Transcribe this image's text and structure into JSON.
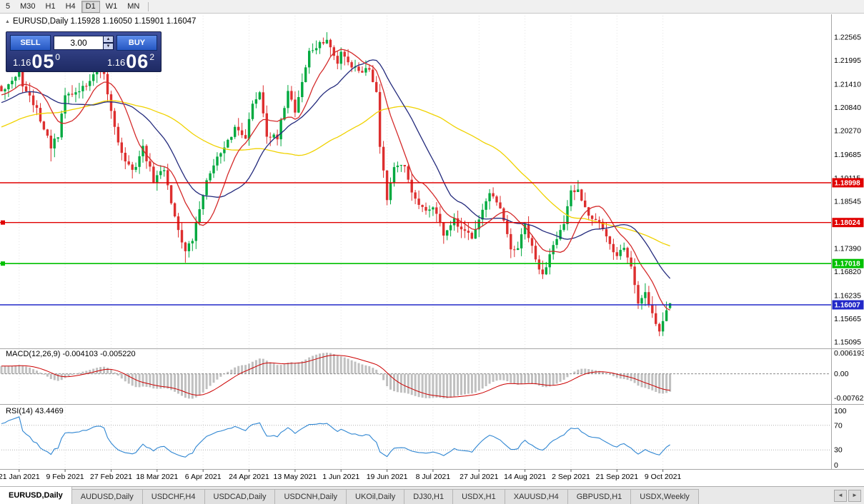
{
  "toolbar": {
    "timeframe_buttons": [
      "5",
      "M30",
      "H1",
      "H4",
      "D1",
      "W1",
      "MN"
    ],
    "active": "D1"
  },
  "chart": {
    "header": "EURUSD,Daily  1.15928 1.16050 1.15901 1.16047",
    "collapse_icon": "▲"
  },
  "trade_panel": {
    "sell_label": "SELL",
    "buy_label": "BUY",
    "volume": "3.00",
    "spin_up": "▲",
    "spin_down": "▼",
    "sell_price": {
      "prefix": "1.16",
      "big": "05",
      "sup": "0"
    },
    "buy_price": {
      "prefix": "1.16",
      "big": "06",
      "sup": "2"
    }
  },
  "price_axis": {
    "labels": [
      "1.22565",
      "1.21995",
      "1.21410",
      "1.20840",
      "1.20270",
      "1.19685",
      "1.19115",
      "1.18545",
      "1.17390",
      "1.16820",
      "1.16235",
      "1.15665",
      "1.15095"
    ]
  },
  "date_axis": {
    "labels": [
      "21 Jan 2021",
      "9 Feb 2021",
      "27 Feb 2021",
      "18 Mar 2021",
      "6 Apr 2021",
      "24 Apr 2021",
      "13 May 2021",
      "1 Jun 2021",
      "19 Jun 2021",
      "8 Jul 2021",
      "27 Jul 2021",
      "14 Aug 2021",
      "2 Sep 2021",
      "21 Sep 2021",
      "9 Oct 2021"
    ]
  },
  "panes": {
    "macd": {
      "title": "MACD(12,26,9) -0.004103 -0.005220",
      "axis_labels": [
        "0.006193",
        "0.00",
        "-0.00762"
      ]
    },
    "rsi": {
      "title": "RSI(14) 43.4469",
      "axis_labels": [
        "100",
        "70",
        "30",
        "0"
      ]
    }
  },
  "tabs": {
    "items": [
      "EURUSD,Daily",
      "AUDUSD,Daily",
      "USDCHF,H4",
      "USDCAD,Daily",
      "USDCNH,Daily",
      "UKOil,Daily",
      "DJ30,H1",
      "USDX,H1",
      "XAUUSD,H4",
      "GBPUSD,H1",
      "USDX,Weekly"
    ],
    "active_index": 0,
    "scroll_left": "◄",
    "scroll_right": "►"
  },
  "chart_data": {
    "type": "candlestick",
    "symbol": "EURUSD",
    "timeframe": "Daily",
    "last_ohlc": {
      "open": 1.15928,
      "high": 1.1605,
      "low": 1.15901,
      "close": 1.16047
    },
    "visible_price_range": [
      1.1498,
      1.2309
    ],
    "visible_date_range": [
      "21 Jan 2021",
      "14 Oct 2021"
    ],
    "colors": {
      "up": "#00a93f",
      "down": "#dd2f2f",
      "ma_fast": "#d42a2a",
      "ma_mid": "#232a7c",
      "ma_slow": "#f0d200",
      "macd_histogram": "#c0c0c0",
      "macd_signal": "#cc0000",
      "rsi_line": "#2f86d2",
      "level_red": "#e00000",
      "level_green": "#00c000",
      "level_blue": "#2228c8",
      "grid": "#e3e3e3"
    },
    "moving_averages": [
      {
        "period": 10,
        "color_key": "ma_fast"
      },
      {
        "period": 21,
        "color_key": "ma_mid"
      },
      {
        "period": 55,
        "color_key": "ma_slow"
      }
    ],
    "key_levels": [
      {
        "price": 1.18998,
        "label": "1.18998",
        "color_key": "level_red",
        "width": 1.4,
        "handle": false
      },
      {
        "price": 1.18024,
        "label": "1.18024",
        "color_key": "level_red",
        "width": 1.4,
        "handle": true
      },
      {
        "price": 1.17018,
        "label": "1.17018",
        "color_key": "level_green",
        "width": 1.6,
        "handle": true
      },
      {
        "price": 1.16007,
        "label": "1.16007",
        "color_key": "level_blue",
        "width": 1.6,
        "handle": false
      }
    ],
    "macd": {
      "fast": 12,
      "slow": 26,
      "signal": 9,
      "current": -0.004103,
      "current_signal": -0.00522
    },
    "rsi": {
      "period": 14,
      "current": 43.4469,
      "levels": [
        70,
        30
      ]
    },
    "approx_close_anchors": [
      [
        0,
        1.213
      ],
      [
        3,
        1.215
      ],
      [
        5,
        1.2165
      ],
      [
        7,
        1.212
      ],
      [
        10,
        1.208
      ],
      [
        12,
        1.203
      ],
      [
        14,
        1.199
      ],
      [
        16,
        1.201
      ],
      [
        18,
        1.2115
      ],
      [
        21,
        1.212
      ],
      [
        24,
        1.214
      ],
      [
        27,
        1.217
      ],
      [
        29,
        1.216
      ],
      [
        31,
        1.2075
      ],
      [
        34,
        1.197
      ],
      [
        37,
        1.1925
      ],
      [
        40,
        1.1985
      ],
      [
        43,
        1.1905
      ],
      [
        46,
        1.1935
      ],
      [
        49,
        1.1815
      ],
      [
        52,
        1.173
      ],
      [
        54,
        1.176
      ],
      [
        57,
        1.1875
      ],
      [
        60,
        1.195
      ],
      [
        63,
        1.198
      ],
      [
        66,
        1.2035
      ],
      [
        69,
        1.2015
      ],
      [
        71,
        1.209
      ],
      [
        73,
        1.2125
      ],
      [
        75,
        1.202
      ],
      [
        78,
        1.2005
      ],
      [
        81,
        1.213
      ],
      [
        83,
        1.2075
      ],
      [
        87,
        1.222
      ],
      [
        92,
        1.225
      ],
      [
        95,
        1.219
      ],
      [
        96,
        1.2225
      ],
      [
        99,
        1.2185
      ],
      [
        102,
        1.2175
      ],
      [
        104,
        1.218
      ],
      [
        106,
        1.2125
      ],
      [
        107,
        1.1995
      ],
      [
        109,
        1.1862
      ],
      [
        111,
        1.194
      ],
      [
        114,
        1.1935
      ],
      [
        117,
        1.1855
      ],
      [
        120,
        1.1825
      ],
      [
        122,
        1.1845
      ],
      [
        125,
        1.1775
      ],
      [
        128,
        1.1805
      ],
      [
        130,
        1.178
      ],
      [
        133,
        1.177
      ],
      [
        135,
        1.1815
      ],
      [
        138,
        1.187
      ],
      [
        141,
        1.1835
      ],
      [
        144,
        1.1735
      ],
      [
        146,
        1.174
      ],
      [
        148,
        1.1795
      ],
      [
        151,
        1.171
      ],
      [
        153,
        1.167
      ],
      [
        156,
        1.1755
      ],
      [
        159,
        1.1795
      ],
      [
        161,
        1.1875
      ],
      [
        163,
        1.188
      ],
      [
        166,
        1.1825
      ],
      [
        169,
        1.1805
      ],
      [
        171,
        1.1765
      ],
      [
        173,
        1.1725
      ],
      [
        174,
        1.1725
      ],
      [
        176,
        1.174
      ],
      [
        178,
        1.1695
      ],
      [
        180,
        1.1605
      ],
      [
        182,
        1.1635
      ],
      [
        184,
        1.158
      ],
      [
        186,
        1.1535
      ],
      [
        187,
        1.156
      ],
      [
        188,
        1.1585
      ],
      [
        189,
        1.16047
      ]
    ],
    "wick_extremes": [
      {
        "i": 14,
        "low": 1.1952
      },
      {
        "i": 52,
        "low": 1.1704
      },
      {
        "i": 92,
        "high": 1.2264
      },
      {
        "i": 153,
        "low": 1.1664
      },
      {
        "i": 163,
        "high": 1.1906
      },
      {
        "i": 186,
        "low": 1.1524
      }
    ]
  }
}
